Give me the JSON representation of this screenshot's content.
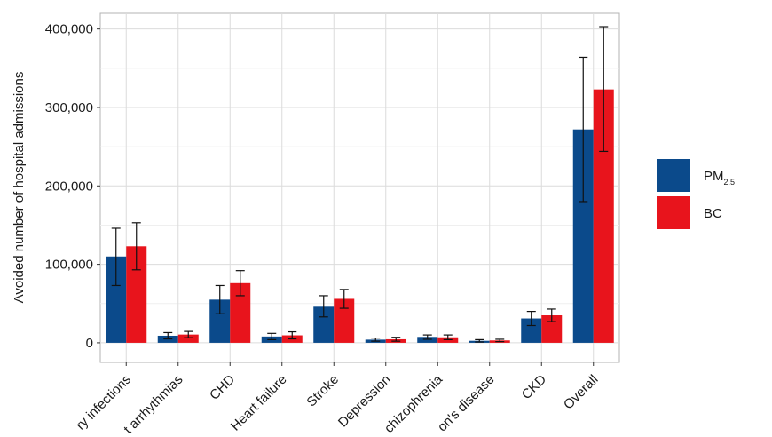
{
  "chart_data": {
    "type": "bar",
    "ylabel": "Avoided number of hospital admissions",
    "xlabel": "",
    "ylim": [
      -25000,
      420000
    ],
    "yticks": [
      0,
      100000,
      200000,
      300000,
      400000
    ],
    "ytick_labels": [
      "0",
      "100,000",
      "200,000",
      "300,000",
      "400,000"
    ],
    "grid": true,
    "legend_position": "right",
    "categories": [
      "ry infections",
      "t arrhythmias",
      "CHD",
      "Heart failure",
      "Stroke",
      "Depression",
      "chizophrenia",
      "on's disease",
      "CKD",
      "Overall"
    ],
    "series": [
      {
        "name": "PM2.5",
        "name_main": "PM",
        "name_sub": "2.5",
        "color": "#0b4a8b",
        "values": [
          110000,
          9000,
          55000,
          8000,
          46000,
          4000,
          7500,
          2500,
          31000,
          272000
        ],
        "err_low": [
          73000,
          5000,
          37000,
          4000,
          33000,
          2000,
          4500,
          1000,
          22000,
          180000
        ],
        "err_high": [
          146000,
          13000,
          73000,
          12000,
          60000,
          6000,
          10000,
          4000,
          40000,
          364000
        ]
      },
      {
        "name": "BC",
        "color": "#e8141c",
        "values": [
          123000,
          10500,
          76000,
          9500,
          56000,
          4500,
          7000,
          3000,
          35000,
          323000
        ],
        "err_low": [
          93000,
          6500,
          60000,
          5000,
          44000,
          2000,
          4000,
          1500,
          27000,
          244000
        ],
        "err_high": [
          153000,
          14500,
          92000,
          14000,
          68000,
          7000,
          10000,
          4500,
          43000,
          403000
        ]
      }
    ]
  }
}
